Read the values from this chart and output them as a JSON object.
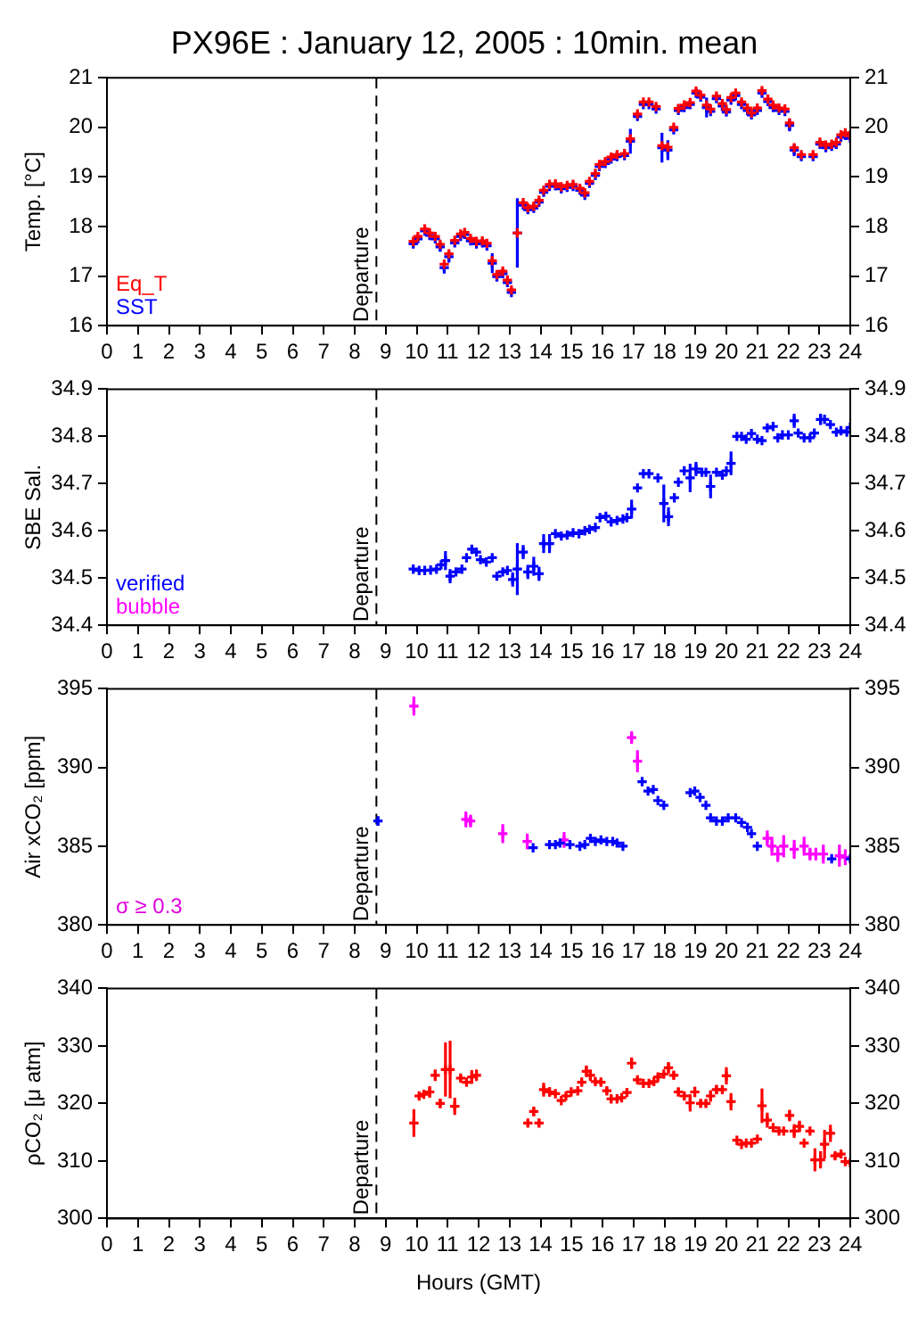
{
  "chart_data": [
    {
      "type": "scatter",
      "title": "PX96E : January 12, 2005 : 10min. mean",
      "ylabel": "Temp. [°C]",
      "xlim": [
        0,
        24
      ],
      "xticks": [
        0,
        1,
        2,
        3,
        4,
        5,
        6,
        7,
        8,
        9,
        10,
        11,
        12,
        13,
        14,
        15,
        16,
        17,
        18,
        19,
        20,
        21,
        22,
        23,
        24
      ],
      "ylim": [
        16,
        21
      ],
      "yticks": [
        16,
        17,
        18,
        19,
        20,
        21
      ],
      "y2lim": [
        16,
        21
      ],
      "y2ticks": [
        16,
        17,
        18,
        19,
        20,
        21
      ],
      "grid": false,
      "legend": "bottom left",
      "marker": "cross",
      "ref_lines": [
        {
          "axis": "x",
          "value": 8.7,
          "label": "Departure",
          "line_style": "dashed"
        }
      ],
      "series": [
        {
          "name": "Eq_T",
          "color": "#ff0000",
          "x": [
            9.89,
            10.04,
            10.26,
            10.42,
            10.6,
            10.76,
            10.89,
            11.04,
            11.23,
            11.42,
            11.55,
            11.74,
            11.93,
            12.12,
            12.27,
            12.44,
            12.59,
            12.78,
            12.93,
            13.06,
            13.25,
            13.44,
            13.59,
            13.78,
            13.95,
            14.1,
            14.29,
            14.48,
            14.67,
            14.86,
            15.05,
            15.27,
            15.43,
            15.58,
            15.77,
            15.9,
            16.09,
            16.28,
            16.47,
            16.71,
            16.9,
            17.13,
            17.32,
            17.5,
            17.73,
            17.92,
            18.11,
            18.3,
            18.45,
            18.64,
            18.83,
            19.02,
            19.17,
            19.36,
            19.49,
            19.68,
            19.87,
            20.0,
            20.15,
            20.3,
            20.49,
            20.68,
            20.81,
            21.0,
            21.15,
            21.34,
            21.51,
            21.7,
            21.89,
            22.04,
            22.19,
            22.42,
            22.8,
            23.02,
            23.21,
            23.4,
            23.55,
            23.7,
            23.84,
            24.0
          ],
          "values": [
            17.7,
            17.8,
            17.95,
            17.87,
            17.8,
            17.64,
            17.24,
            17.45,
            17.72,
            17.85,
            17.88,
            17.76,
            17.7,
            17.71,
            17.66,
            17.31,
            17.03,
            17.1,
            16.92,
            16.72,
            17.87,
            18.48,
            18.38,
            18.41,
            18.53,
            18.73,
            18.85,
            18.86,
            18.8,
            18.83,
            18.85,
            18.77,
            18.68,
            18.91,
            19.07,
            19.25,
            19.31,
            19.4,
            19.45,
            19.47,
            19.77,
            20.27,
            20.51,
            20.51,
            20.42,
            19.63,
            19.6,
            20.0,
            20.38,
            20.45,
            20.5,
            20.73,
            20.65,
            20.45,
            20.37,
            20.63,
            20.48,
            20.36,
            20.6,
            20.69,
            20.51,
            20.39,
            20.29,
            20.39,
            20.74,
            20.57,
            20.45,
            20.39,
            20.37,
            20.09,
            19.59,
            19.45,
            19.45,
            19.7,
            19.64,
            19.66,
            19.7,
            19.85,
            19.89,
            19.83
          ]
        },
        {
          "name": "SST",
          "color": "#0000ff",
          "x": [
            9.89,
            10.04,
            10.26,
            10.42,
            10.6,
            10.76,
            10.89,
            11.04,
            11.23,
            11.42,
            11.55,
            11.74,
            11.93,
            12.12,
            12.27,
            12.44,
            12.59,
            12.78,
            12.93,
            13.06,
            13.25,
            13.44,
            13.59,
            13.78,
            13.95,
            14.1,
            14.29,
            14.48,
            14.67,
            14.86,
            15.05,
            15.27,
            15.43,
            15.58,
            15.77,
            15.9,
            16.09,
            16.28,
            16.47,
            16.71,
            16.9,
            17.13,
            17.32,
            17.5,
            17.73,
            17.92,
            18.11,
            18.3,
            18.45,
            18.64,
            18.83,
            19.02,
            19.17,
            19.36,
            19.49,
            19.68,
            19.87,
            20.0,
            20.15,
            20.3,
            20.49,
            20.68,
            20.81,
            21.0,
            21.15,
            21.34,
            21.51,
            21.7,
            21.89,
            22.04,
            22.19,
            22.42,
            22.8,
            23.02,
            23.21,
            23.4,
            23.55,
            23.7,
            23.84,
            24.0
          ],
          "values": [
            17.65,
            17.75,
            17.91,
            17.82,
            17.75,
            17.59,
            17.17,
            17.39,
            17.67,
            17.8,
            17.84,
            17.71,
            17.65,
            17.67,
            17.61,
            17.26,
            16.99,
            17.05,
            16.87,
            16.67,
            17.87,
            18.43,
            18.34,
            18.37,
            18.49,
            18.69,
            18.81,
            18.82,
            18.76,
            18.79,
            18.81,
            18.73,
            18.63,
            18.87,
            19.03,
            19.21,
            19.27,
            19.36,
            19.41,
            19.43,
            19.72,
            20.22,
            20.46,
            20.46,
            20.37,
            19.59,
            19.54,
            19.95,
            20.34,
            20.4,
            20.46,
            20.69,
            20.61,
            20.4,
            20.32,
            20.58,
            20.43,
            20.31,
            20.55,
            20.64,
            20.46,
            20.34,
            20.25,
            20.34,
            20.69,
            20.52,
            20.4,
            20.34,
            20.32,
            20.04,
            19.54,
            19.41,
            19.41,
            19.66,
            19.59,
            19.62,
            19.66,
            19.8,
            19.84,
            19.78
          ],
          "errors": [
            null,
            null,
            null,
            null,
            null,
            0.1,
            0.12,
            0.12,
            null,
            null,
            null,
            null,
            null,
            null,
            null,
            0.2,
            0.1,
            null,
            null,
            null,
            0.7,
            null,
            null,
            null,
            null,
            null,
            null,
            null,
            null,
            null,
            null,
            null,
            null,
            null,
            null,
            null,
            null,
            null,
            null,
            null,
            0.25,
            null,
            null,
            null,
            null,
            0.3,
            0.2,
            null,
            null,
            null,
            null,
            null,
            null,
            0.2,
            null,
            null,
            0.1,
            null,
            null,
            null,
            null,
            null,
            null,
            null,
            null,
            null,
            null,
            null,
            null,
            0.12,
            0.12,
            null,
            null,
            null,
            null,
            null,
            null,
            null,
            null,
            null
          ]
        }
      ]
    },
    {
      "type": "scatter",
      "ylabel": "SBE Sal.",
      "xlim": [
        0,
        24
      ],
      "xticks": [
        0,
        1,
        2,
        3,
        4,
        5,
        6,
        7,
        8,
        9,
        10,
        11,
        12,
        13,
        14,
        15,
        16,
        17,
        18,
        19,
        20,
        21,
        22,
        23,
        24
      ],
      "ylim": [
        34.4,
        34.9
      ],
      "yticks": [
        34.4,
        34.5,
        34.6,
        34.7,
        34.8,
        34.9
      ],
      "y2lim": [
        34.4,
        34.9
      ],
      "y2ticks": [
        34.4,
        34.5,
        34.6,
        34.7,
        34.8,
        34.9
      ],
      "grid": false,
      "legend": "bottom left",
      "marker": "cross",
      "ref_lines": [
        {
          "axis": "x",
          "value": 8.7,
          "label": "Departure",
          "line_style": "dashed"
        }
      ],
      "series": [
        {
          "name": "verified",
          "color": "#0000ff",
          "x": [
            9.89,
            10.08,
            10.26,
            10.45,
            10.64,
            10.79,
            10.93,
            11.08,
            11.27,
            11.46,
            11.61,
            11.78,
            11.93,
            12.06,
            12.25,
            12.44,
            12.59,
            12.78,
            12.93,
            13.1,
            13.25,
            13.44,
            13.59,
            13.78,
            13.95,
            14.1,
            14.29,
            14.48,
            14.67,
            14.86,
            15.05,
            15.24,
            15.43,
            15.58,
            15.77,
            15.92,
            16.11,
            16.28,
            16.47,
            16.66,
            16.79,
            16.94,
            17.13,
            17.32,
            17.5,
            17.79,
            17.98,
            18.13,
            18.32,
            18.45,
            18.64,
            18.83,
            19.02,
            19.21,
            19.34,
            19.49,
            19.68,
            19.87,
            20.0,
            20.15,
            20.34,
            20.49,
            20.64,
            20.81,
            21.0,
            21.15,
            21.32,
            21.51,
            21.66,
            21.81,
            22.0,
            22.19,
            22.32,
            22.51,
            22.7,
            22.84,
            23.04,
            23.17,
            23.36,
            23.55,
            23.7,
            23.89,
            24.0
          ],
          "values": [
            34.519,
            34.516,
            34.516,
            34.517,
            34.519,
            34.528,
            34.537,
            34.504,
            34.513,
            34.519,
            34.543,
            34.561,
            34.555,
            34.539,
            34.534,
            34.543,
            34.504,
            34.513,
            34.516,
            34.497,
            34.519,
            34.555,
            34.513,
            34.525,
            34.509,
            34.573,
            34.573,
            34.594,
            34.589,
            34.591,
            34.596,
            34.594,
            34.6,
            34.603,
            34.607,
            34.628,
            34.631,
            34.619,
            34.622,
            34.625,
            34.628,
            34.646,
            34.691,
            34.721,
            34.721,
            34.712,
            34.658,
            34.63,
            34.67,
            34.703,
            34.727,
            34.712,
            34.731,
            34.724,
            34.724,
            34.694,
            34.724,
            34.718,
            34.727,
            34.743,
            34.8,
            34.8,
            34.794,
            34.806,
            34.794,
            34.791,
            34.818,
            34.821,
            34.797,
            34.803,
            34.803,
            34.833,
            34.807,
            34.797,
            34.797,
            34.807,
            34.836,
            34.836,
            34.825,
            34.809,
            34.812,
            34.809,
            34.819
          ],
          "errors": [
            null,
            null,
            null,
            null,
            null,
            null,
            0.02,
            0.015,
            null,
            null,
            null,
            null,
            null,
            null,
            null,
            null,
            null,
            null,
            null,
            0.015,
            0.055,
            0.015,
            0.015,
            0.02,
            0.015,
            0.02,
            0.02,
            null,
            null,
            null,
            null,
            null,
            null,
            null,
            null,
            null,
            null,
            null,
            null,
            null,
            null,
            0.02,
            null,
            null,
            null,
            null,
            0.04,
            0.02,
            null,
            null,
            null,
            0.03,
            0.015,
            null,
            null,
            0.025,
            null,
            null,
            null,
            0.025,
            null,
            null,
            null,
            null,
            null,
            null,
            null,
            null,
            null,
            null,
            null,
            0.015,
            null,
            null,
            null,
            null,
            0.012,
            null,
            null,
            null,
            null,
            null,
            null
          ]
        },
        {
          "name": "bubble",
          "color": "#ff00ff"
        }
      ]
    },
    {
      "type": "scatter",
      "ylabel": "Air xCO₂ [ppm]",
      "xlim": [
        0,
        24
      ],
      "xticks": [
        0,
        1,
        2,
        3,
        4,
        5,
        6,
        7,
        8,
        9,
        10,
        11,
        12,
        13,
        14,
        15,
        16,
        17,
        18,
        19,
        20,
        21,
        22,
        23,
        24
      ],
      "ylim": [
        380,
        395
      ],
      "yticks": [
        380,
        385,
        390,
        395
      ],
      "y2lim": [
        380,
        395
      ],
      "y2ticks": [
        380,
        385,
        390,
        395
      ],
      "grid": false,
      "marker": "cross",
      "annotations": [
        "σ ≥ 0.3"
      ],
      "ref_lines": [
        {
          "axis": "x",
          "value": 8.7,
          "label": "Departure",
          "line_style": "dashed"
        }
      ],
      "series": [
        {
          "color": "#0000ff",
          "x": [
            8.75,
            13.76,
            14.29,
            14.48,
            14.63,
            14.95,
            15.27,
            15.43,
            15.61,
            15.77,
            15.95,
            16.14,
            16.33,
            16.47,
            16.66,
            17.28,
            17.47,
            17.64,
            17.79,
            17.98,
            18.83,
            18.98,
            19.15,
            19.34,
            19.49,
            19.68,
            19.87,
            20.06,
            20.3,
            20.49,
            20.68,
            20.81,
            21.0,
            23.4,
            24.0
          ],
          "values": [
            386.6,
            384.9,
            385.1,
            385.1,
            385.2,
            385.1,
            385.0,
            385.1,
            385.5,
            385.3,
            385.4,
            385.3,
            385.3,
            385.2,
            385.0,
            389.1,
            388.5,
            388.6,
            387.9,
            387.6,
            388.4,
            388.5,
            388.1,
            387.6,
            386.8,
            386.6,
            386.6,
            386.8,
            386.8,
            386.5,
            386.2,
            385.8,
            385.0,
            384.2,
            384.2
          ],
          "errors": [
            0.3,
            null,
            null,
            null,
            null,
            null,
            null,
            null,
            null,
            null,
            null,
            null,
            null,
            null,
            null,
            null,
            null,
            null,
            null,
            null,
            null,
            null,
            null,
            null,
            null,
            null,
            null,
            null,
            null,
            null,
            null,
            null,
            null,
            null,
            null
          ]
        },
        {
          "color": "#ff00ff",
          "x": [
            9.91,
            11.59,
            11.74,
            12.78,
            13.57,
            14.76,
            16.94,
            17.13,
            21.32,
            21.47,
            21.66,
            21.85,
            22.19,
            22.51,
            22.7,
            22.89,
            23.13,
            23.65,
            23.84
          ],
          "values": [
            393.9,
            386.7,
            386.6,
            385.8,
            385.3,
            385.4,
            391.9,
            390.4,
            385.5,
            385.0,
            384.5,
            385.0,
            384.8,
            385.0,
            384.5,
            384.5,
            384.5,
            384.4,
            384.3
          ],
          "errors": [
            0.6,
            0.5,
            0.4,
            0.6,
            0.5,
            0.5,
            0.4,
            0.7,
            0.5,
            0.6,
            0.5,
            0.7,
            0.6,
            0.6,
            0.4,
            0.4,
            0.6,
            0.7,
            0.5
          ]
        }
      ]
    },
    {
      "type": "scatter",
      "ylabel": "ρCO₂ [μ atm]",
      "xlabel": "Hours (GMT)",
      "xlim": [
        0,
        24
      ],
      "xticks": [
        0,
        1,
        2,
        3,
        4,
        5,
        6,
        7,
        8,
        9,
        10,
        11,
        12,
        13,
        14,
        15,
        16,
        17,
        18,
        19,
        20,
        21,
        22,
        23,
        24
      ],
      "ylim": [
        300,
        340
      ],
      "yticks": [
        300,
        310,
        320,
        330,
        340
      ],
      "y2lim": [
        300,
        340
      ],
      "y2ticks": [
        300,
        310,
        320,
        330,
        340
      ],
      "grid": false,
      "marker": "cross",
      "ref_lines": [
        {
          "axis": "x",
          "value": 8.7,
          "label": "Departure",
          "line_style": "dashed"
        }
      ],
      "series": [
        {
          "color": "#ff0000",
          "x": [
            9.91,
            10.08,
            10.23,
            10.42,
            10.6,
            10.76,
            10.93,
            11.08,
            11.23,
            11.42,
            11.61,
            11.78,
            11.93,
            13.59,
            13.78,
            13.95,
            14.1,
            14.29,
            14.48,
            14.67,
            14.82,
            14.99,
            15.2,
            15.33,
            15.48,
            15.61,
            15.77,
            15.95,
            16.14,
            16.28,
            16.47,
            16.62,
            16.79,
            16.94,
            17.13,
            17.32,
            17.5,
            17.66,
            17.79,
            17.98,
            18.13,
            18.3,
            18.45,
            18.64,
            18.83,
            18.98,
            19.17,
            19.34,
            19.49,
            19.68,
            19.87,
            20.0,
            20.15,
            20.34,
            20.49,
            20.64,
            20.81,
            21.0,
            21.15,
            21.32,
            21.51,
            21.7,
            21.85,
            22.04,
            22.19,
            22.36,
            22.51,
            22.7,
            22.86,
            23.04,
            23.17,
            23.36,
            23.51,
            23.7,
            23.84,
            24.0
          ],
          "values": [
            316.6,
            321.3,
            321.6,
            322.0,
            324.9,
            320.0,
            325.9,
            325.9,
            319.5,
            324.4,
            323.7,
            324.6,
            324.9,
            316.6,
            318.6,
            316.6,
            322.4,
            322.0,
            321.7,
            320.5,
            321.3,
            322.0,
            322.2,
            323.7,
            325.6,
            324.9,
            323.8,
            323.7,
            322.2,
            320.8,
            320.8,
            321.0,
            321.9,
            327.0,
            324.1,
            323.5,
            323.5,
            323.8,
            324.6,
            325.1,
            326.2,
            324.9,
            322.0,
            321.3,
            320.1,
            322.0,
            320.0,
            320.0,
            321.3,
            322.4,
            322.4,
            324.8,
            320.3,
            313.6,
            312.9,
            313.1,
            313.1,
            313.8,
            319.6,
            317.1,
            315.8,
            315.2,
            315.2,
            317.9,
            315.2,
            316.0,
            313.1,
            315.2,
            310.2,
            310.2,
            312.9,
            314.8,
            310.9,
            311.2,
            309.9,
            309.7
          ],
          "errors": [
            2.4,
            0.5,
            0.7,
            1.0,
            1.0,
            0.8,
            4.7,
            5,
            1.5,
            0.5,
            0.4,
            1.2,
            1.0,
            0.5,
            0.8,
            0.7,
            1.2,
            0.8,
            0.4,
            0.3,
            0.3,
            0.3,
            0.3,
            0.4,
            1.0,
            1.0,
            0.5,
            0.5,
            0.6,
            0.6,
            0.4,
            0.4,
            0.6,
            1.0,
            0.5,
            null,
            null,
            0.3,
            0.4,
            0.4,
            1.0,
            0.6,
            0.7,
            0.6,
            1.5,
            0.9,
            0.6,
            0.6,
            1.0,
            0.8,
            0.6,
            1.5,
            1.5,
            0.3,
            0.3,
            null,
            null,
            0.3,
            3.0,
            1.3,
            null,
            0.4,
            0.3,
            1.0,
            1.2,
            1.0,
            null,
            0.3,
            2.0,
            1.5,
            2.5,
            1.5,
            0.6,
            0.6,
            null,
            null
          ]
        }
      ]
    }
  ]
}
